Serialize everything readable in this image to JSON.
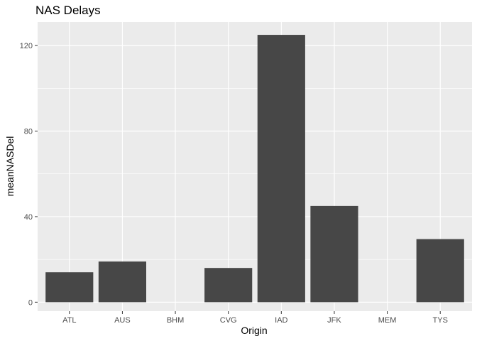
{
  "chart_data": {
    "type": "bar",
    "title": "NAS Delays",
    "xlabel": "Origin",
    "ylabel": "meanNASDel",
    "categories": [
      "ATL",
      "AUS",
      "BHM",
      "CVG",
      "IAD",
      "JFK",
      "MEM",
      "TYS"
    ],
    "values": [
      14,
      19,
      0,
      16,
      125,
      45,
      0,
      29.5
    ],
    "ylim": [
      -4.2,
      131
    ],
    "yticks": [
      0,
      40,
      80,
      120
    ],
    "grid": true,
    "legend": "none",
    "colors": {
      "bar": "#474747",
      "panel": "#ebebeb",
      "grid_major": "#ffffff",
      "tick_label": "#4d4d4d"
    }
  }
}
